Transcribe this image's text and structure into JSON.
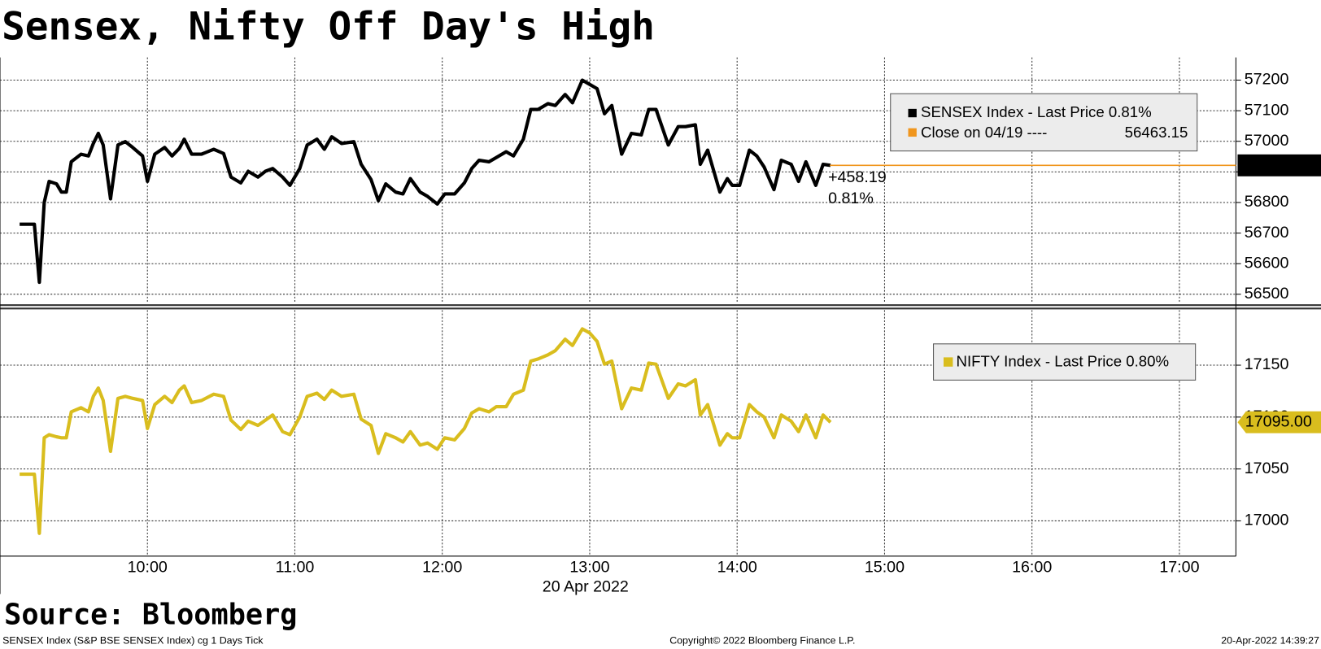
{
  "title": "Sensex, Nifty Off Day's High",
  "source": "Source: Bloomberg",
  "footer": {
    "left": "SENSEX Index (S&P BSE SENSEX Index) cg 1 Days  Tick",
    "center": "Copyright© 2022 Bloomberg Finance L.P.",
    "right": "20-Apr-2022 14:39:27"
  },
  "chart_data": [
    {
      "type": "line",
      "x": [
        "09:08",
        "09:14",
        "09:16",
        "09:18",
        "09:20",
        "09:23",
        "09:25",
        "09:27",
        "09:29",
        "09:33",
        "09:36",
        "09:38",
        "09:40",
        "09:42",
        "09:45",
        "09:48",
        "09:51",
        "09:54",
        "09:58",
        "10:00",
        "10:03",
        "10:07",
        "10:10",
        "10:13",
        "10:15",
        "10:18",
        "10:22",
        "10:27",
        "10:31",
        "10:34",
        "10:38",
        "10:41",
        "10:45",
        "10:48",
        "10:51",
        "10:55",
        "10:58",
        "11:02",
        "11:05",
        "11:09",
        "11:12",
        "11:15",
        "11:19",
        "11:24",
        "11:27",
        "11:31",
        "11:34",
        "11:37",
        "11:41",
        "11:44",
        "11:47",
        "11:51",
        "11:54",
        "11:58",
        "12:01",
        "12:05",
        "12:09",
        "12:12",
        "12:15",
        "12:19",
        "12:22",
        "12:26",
        "12:29",
        "12:33",
        "12:36",
        "12:39",
        "12:43",
        "12:46",
        "12:50",
        "12:53",
        "12:57",
        "13:00",
        "13:03",
        "13:06",
        "13:09",
        "13:13",
        "13:17",
        "13:21",
        "13:24",
        "13:27",
        "13:32",
        "13:36",
        "13:39",
        "13:43",
        "13:45",
        "13:48",
        "13:53",
        "13:56",
        "13:58",
        "14:01",
        "14:05",
        "14:08",
        "14:11",
        "14:15",
        "14:18",
        "14:22",
        "14:25",
        "14:28",
        "14:32",
        "14:35",
        "14:38"
      ],
      "series": [
        {
          "name": "SENSEX Index - Last Price 0.81%",
          "color": "#000000",
          "values": [
            56729,
            56729,
            56539,
            56800,
            56869,
            56861,
            56834,
            56834,
            56933,
            56958,
            56952,
            56993,
            57026,
            56988,
            56812,
            56988,
            56999,
            56980,
            56952,
            56869,
            56958,
            56980,
            56952,
            56977,
            57007,
            56958,
            56958,
            56974,
            56960,
            56883,
            56864,
            56902,
            56883,
            56902,
            56911,
            56883,
            56856,
            56911,
            56988,
            57007,
            56974,
            57015,
            56993,
            56999,
            56925,
            56875,
            56806,
            56861,
            56834,
            56828,
            56878,
            56834,
            56820,
            56795,
            56828,
            56828,
            56864,
            56911,
            56938,
            56933,
            56947,
            56966,
            56952,
            57007,
            57104,
            57104,
            57123,
            57117,
            57153,
            57126,
            57200,
            57186,
            57172,
            57090,
            57117,
            56958,
            57026,
            57021,
            57104,
            57104,
            56988,
            57048,
            57048,
            57054,
            56925,
            56971,
            56834,
            56878,
            56856,
            56856,
            56971,
            56952,
            56916,
            56842,
            56938,
            56925,
            56869,
            56933,
            56856,
            56925,
            56921.34
          ]
        }
      ],
      "xlim": [
        "09:00",
        "17:23"
      ],
      "xticks": [
        "10:00",
        "11:00",
        "12:00",
        "13:00",
        "14:00",
        "15:00",
        "16:00",
        "17:00"
      ],
      "ylim": [
        56470,
        57274
      ],
      "yticks": [
        56500,
        56600,
        56700,
        56800,
        56900,
        57000,
        57100,
        57200
      ],
      "grid": true,
      "last_price": 56921.34,
      "change_label": "+458.19",
      "change_pct_label": "0.81%",
      "close_label": "Close on 04/19 ----",
      "close_value": 56463.15,
      "close_color": "#f0961e"
    },
    {
      "type": "line",
      "x": [
        "09:08",
        "09:14",
        "09:16",
        "09:18",
        "09:20",
        "09:23",
        "09:25",
        "09:27",
        "09:29",
        "09:33",
        "09:36",
        "09:38",
        "09:40",
        "09:42",
        "09:45",
        "09:48",
        "09:51",
        "09:54",
        "09:58",
        "10:00",
        "10:03",
        "10:07",
        "10:10",
        "10:13",
        "10:15",
        "10:18",
        "10:22",
        "10:27",
        "10:31",
        "10:34",
        "10:38",
        "10:41",
        "10:45",
        "10:48",
        "10:51",
        "10:55",
        "10:58",
        "11:02",
        "11:05",
        "11:09",
        "11:12",
        "11:15",
        "11:19",
        "11:24",
        "11:27",
        "11:31",
        "11:34",
        "11:37",
        "11:41",
        "11:44",
        "11:47",
        "11:51",
        "11:54",
        "11:58",
        "12:01",
        "12:05",
        "12:09",
        "12:12",
        "12:15",
        "12:19",
        "12:22",
        "12:26",
        "12:29",
        "12:33",
        "12:36",
        "12:39",
        "12:43",
        "12:46",
        "12:50",
        "12:53",
        "12:57",
        "13:00",
        "13:03",
        "13:06",
        "13:09",
        "13:13",
        "13:17",
        "13:21",
        "13:24",
        "13:27",
        "13:32",
        "13:36",
        "13:39",
        "13:43",
        "13:45",
        "13:48",
        "13:53",
        "13:56",
        "13:58",
        "14:01",
        "14:05",
        "14:08",
        "14:11",
        "14:15",
        "14:18",
        "14:22",
        "14:25",
        "14:28",
        "14:32",
        "14:35",
        "14:38"
      ],
      "series": [
        {
          "name": "NIFTY Index - Last Price 0.80%",
          "color": "#d9bd1e",
          "values": [
            17045,
            17045,
            16988,
            17080,
            17083,
            17081,
            17080,
            17080,
            17105,
            17109,
            17105,
            17120,
            17128,
            17116,
            17067,
            17118,
            17120,
            17118,
            17116,
            17089,
            17112,
            17120,
            17114,
            17126,
            17130,
            17114,
            17116,
            17122,
            17120,
            17097,
            17088,
            17096,
            17092,
            17097,
            17102,
            17086,
            17083,
            17100,
            17120,
            17123,
            17117,
            17126,
            17120,
            17122,
            17098,
            17092,
            17065,
            17084,
            17080,
            17076,
            17086,
            17073,
            17075,
            17069,
            17080,
            17078,
            17089,
            17104,
            17108,
            17105,
            17110,
            17110,
            17122,
            17126,
            17154,
            17156,
            17160,
            17164,
            17175,
            17169,
            17185,
            17181,
            17173,
            17151,
            17154,
            17108,
            17128,
            17126,
            17152,
            17151,
            17118,
            17132,
            17130,
            17136,
            17102,
            17112,
            17073,
            17084,
            17080,
            17080,
            17112,
            17105,
            17100,
            17080,
            17102,
            17096,
            17086,
            17102,
            17080,
            17102,
            17095
          ]
        }
      ],
      "xlim": [
        "09:00",
        "17:23"
      ],
      "xticks": [
        "10:00",
        "11:00",
        "12:00",
        "13:00",
        "14:00",
        "15:00",
        "16:00",
        "17:00"
      ],
      "x_label": "20 Apr 2022",
      "ylim": [
        16966,
        17203
      ],
      "yticks": [
        17000,
        17050,
        17100,
        17150
      ],
      "grid": true,
      "last_price": {
        "value": 17095,
        "label": "17095.00"
      }
    }
  ]
}
